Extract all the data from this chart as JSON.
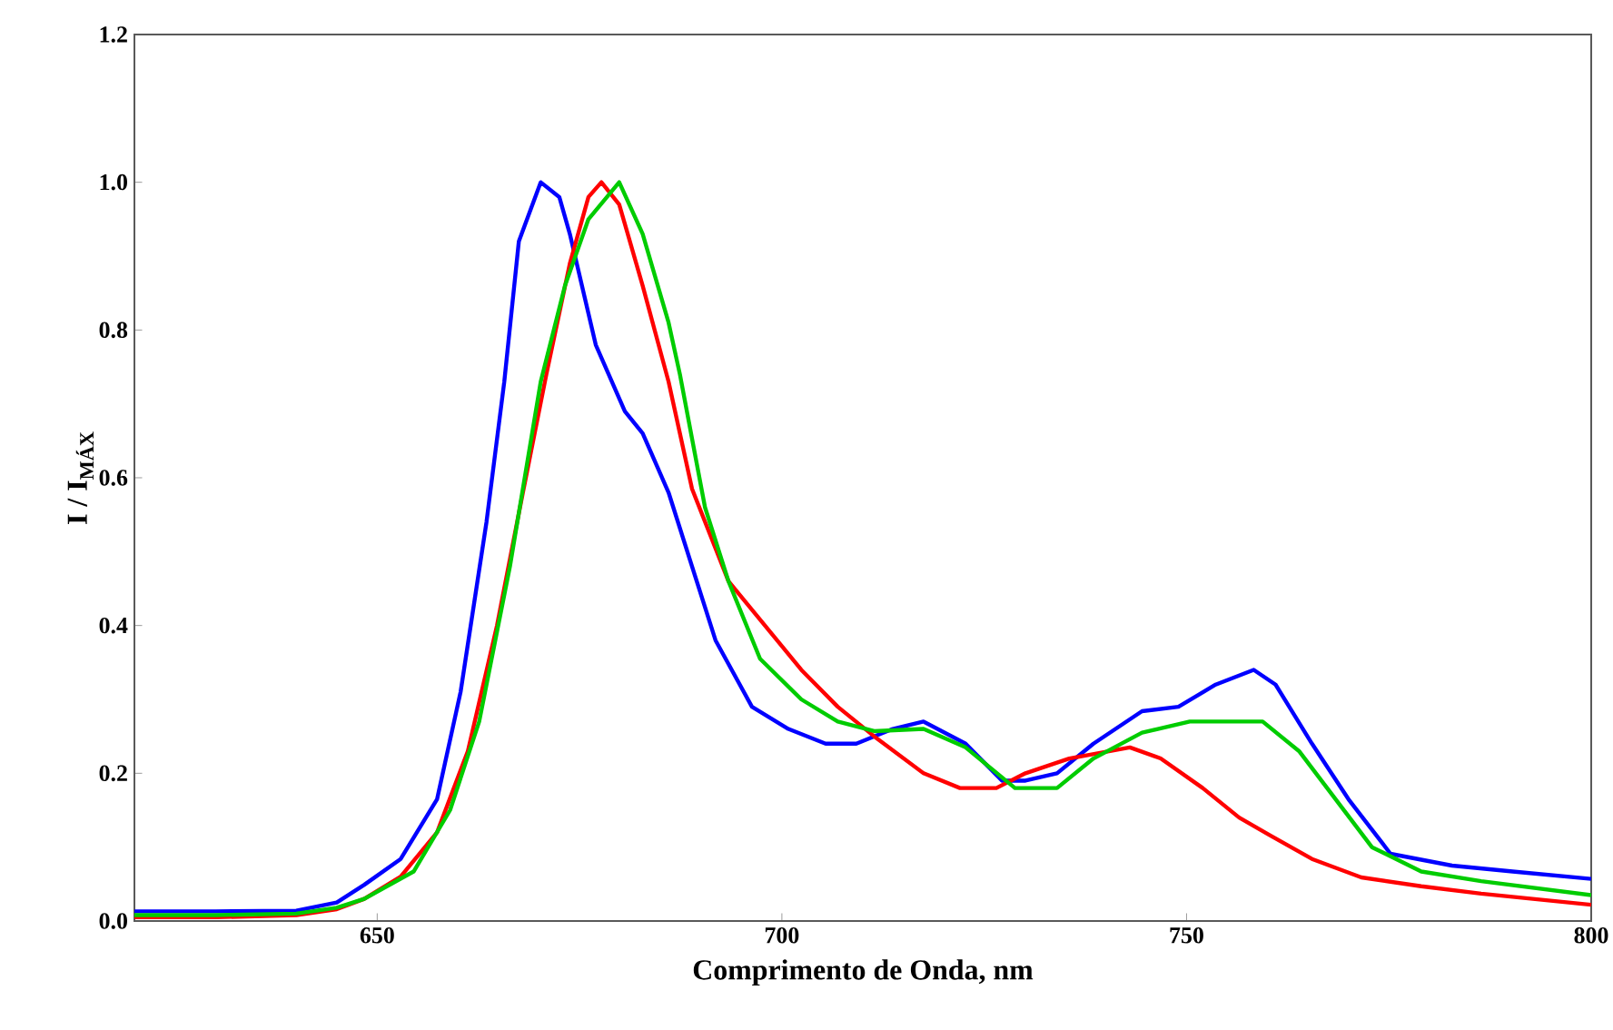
{
  "chart_data": {
    "type": "line",
    "xlabel": "Comprimento de Onda, nm",
    "ylabel": "I / I$_{MÁX}$",
    "xlim": [
      620,
      800
    ],
    "ylim": [
      0,
      1.2
    ],
    "xticks": [
      650,
      700,
      750,
      800
    ],
    "yticks": [
      {
        "value": 0,
        "label": "0.0"
      },
      {
        "value": 0.2,
        "label": "0.2"
      },
      {
        "value": 0.4,
        "label": "0.4"
      },
      {
        "value": 0.6,
        "label": "0.6"
      },
      {
        "value": 0.8,
        "label": "0.8"
      },
      {
        "value": 1.0,
        "label": "1.0"
      },
      {
        "value": 1.2,
        "label": "1.2"
      }
    ],
    "grid": false,
    "marker": "none",
    "line_style": "solid",
    "series": [
      {
        "color": "#0000ff",
        "x": [
          620,
          630,
          640,
          645,
          648.4,
          652.9,
          657.4,
          660.3,
          663.5,
          665.7,
          667.5,
          670.2,
          672.5,
          673.8,
          677,
          680.6,
          682.8,
          686,
          688.9,
          691.8,
          696.3,
          700.8,
          705.4,
          709.2,
          713.7,
          717.5,
          722.7,
          727.2,
          730.1,
          734,
          738.5,
          744.5,
          749,
          753.6,
          758.3,
          761,
          765.5,
          770,
          775.2,
          782.8,
          790.3,
          800
        ],
        "values": [
          0.013,
          0.013,
          0.014,
          0.025,
          0.049,
          0.084,
          0.165,
          0.31,
          0.54,
          0.73,
          0.92,
          1.0,
          0.98,
          0.93,
          0.78,
          0.69,
          0.66,
          0.58,
          0.48,
          0.38,
          0.29,
          0.26,
          0.24,
          0.24,
          0.26,
          0.27,
          0.24,
          0.19,
          0.19,
          0.2,
          0.24,
          0.284,
          0.29,
          0.32,
          0.34,
          0.32,
          0.24,
          0.165,
          0.091,
          0.075,
          0.067,
          0.057
        ]
      },
      {
        "color": "#ff0000",
        "x": [
          620,
          630,
          640,
          645,
          648.4,
          652.9,
          657.4,
          661.2,
          664.8,
          668,
          670.9,
          673.8,
          676.1,
          677.7,
          679.9,
          682.8,
          686,
          688.9,
          693.4,
          697.9,
          702.4,
          706.9,
          711.4,
          717.5,
          722,
          726.5,
          730.1,
          735.5,
          743,
          746.8,
          752,
          756.5,
          760.3,
          765.5,
          771.6,
          779,
          786.4,
          800
        ],
        "values": [
          0.005,
          0.005,
          0.008,
          0.016,
          0.03,
          0.06,
          0.12,
          0.23,
          0.4,
          0.58,
          0.74,
          0.89,
          0.98,
          1.0,
          0.97,
          0.86,
          0.73,
          0.585,
          0.46,
          0.4,
          0.34,
          0.29,
          0.25,
          0.2,
          0.18,
          0.18,
          0.2,
          0.22,
          0.235,
          0.22,
          0.18,
          0.14,
          0.116,
          0.084,
          0.059,
          0.047,
          0.037,
          0.022
        ]
      },
      {
        "color": "#00cc00",
        "x": [
          620,
          630,
          640,
          645,
          648.4,
          654.5,
          659,
          662.6,
          666.4,
          670.2,
          673.2,
          676.1,
          679.9,
          682.8,
          686,
          687.4,
          690.5,
          693.4,
          697.3,
          702.4,
          706.9,
          711.4,
          717.5,
          722.7,
          728.8,
          734,
          738.5,
          744.5,
          750.4,
          753.6,
          759.4,
          763.9,
          768.4,
          772.9,
          779,
          786.4,
          800
        ],
        "values": [
          0.008,
          0.008,
          0.01,
          0.018,
          0.03,
          0.067,
          0.15,
          0.27,
          0.48,
          0.73,
          0.86,
          0.95,
          1.0,
          0.93,
          0.81,
          0.74,
          0.56,
          0.46,
          0.355,
          0.3,
          0.27,
          0.257,
          0.26,
          0.235,
          0.18,
          0.18,
          0.22,
          0.255,
          0.27,
          0.27,
          0.27,
          0.23,
          0.165,
          0.1,
          0.067,
          0.054,
          0.035
        ]
      }
    ]
  }
}
